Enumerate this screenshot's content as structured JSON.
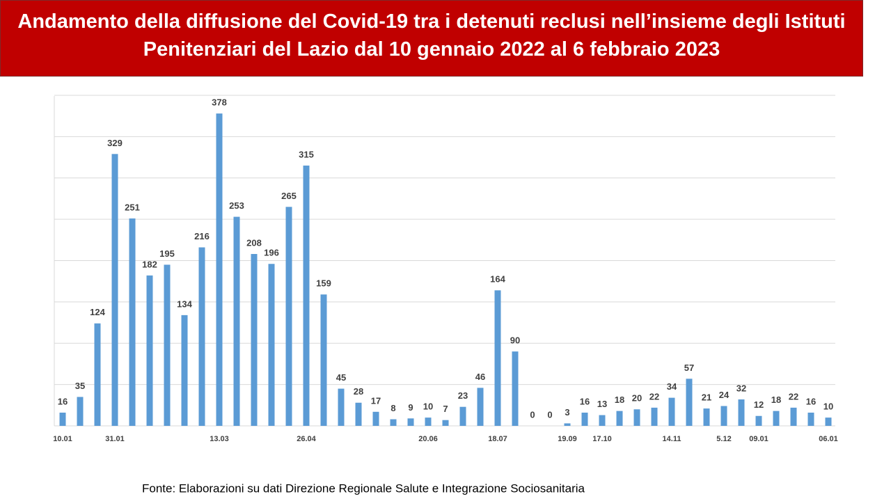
{
  "chart_data": {
    "type": "bar",
    "title": "Andamento della diffusione del Covid-19 tra i detenuti reclusi nell’insieme degli Istituti Penitenziari del Lazio dal 10 gennaio 2022 al 6 febbraio 2023",
    "source": "Fonte: Elaborazioni su dati Direzione Regionale Salute e Integrazione Sociosanitaria",
    "categories": [
      "10.01",
      null,
      null,
      "31.01",
      null,
      null,
      null,
      null,
      null,
      "13.03",
      null,
      null,
      null,
      null,
      "26.04",
      null,
      null,
      null,
      null,
      null,
      null,
      "20.06",
      null,
      null,
      null,
      "18.07",
      null,
      null,
      null,
      "19.09",
      null,
      "17.10",
      null,
      null,
      null,
      "14.11",
      null,
      null,
      "5.12",
      null,
      "09.01",
      null,
      null,
      null,
      "06.01"
    ],
    "values": [
      16,
      35,
      124,
      329,
      251,
      182,
      195,
      134,
      216,
      378,
      253,
      208,
      196,
      265,
      315,
      159,
      45,
      28,
      17,
      8,
      9,
      10,
      7,
      23,
      46,
      164,
      90,
      0,
      0,
      3,
      16,
      13,
      18,
      20,
      22,
      34,
      57,
      21,
      24,
      32,
      12,
      18,
      22,
      16,
      10
    ],
    "color": "#5b9bd5",
    "ylim": [
      0,
      400
    ],
    "yticks": [
      0,
      50,
      100,
      150,
      200,
      250,
      300,
      350,
      400
    ],
    "grid": true
  }
}
